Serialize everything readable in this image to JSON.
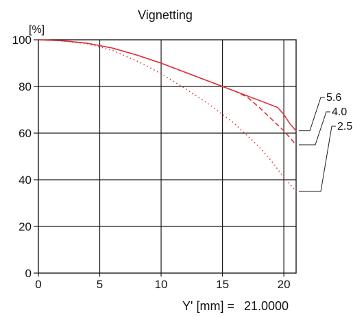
{
  "chart_data": {
    "type": "line",
    "title": "Vignetting",
    "ylabel": "[%]",
    "xlabel": "Y' [mm] =",
    "xlabel_value": "21.0000",
    "xlim": [
      0,
      21
    ],
    "ylim": [
      0,
      100
    ],
    "x_ticks": [
      0,
      5,
      10,
      15,
      20
    ],
    "y_ticks": [
      0,
      20,
      40,
      60,
      80,
      100
    ],
    "grid": true,
    "line_color": "#e0303a",
    "series": [
      {
        "name": "5.6",
        "style": "solid",
        "x": [
          0,
          2,
          4,
          6,
          8,
          10,
          12,
          14,
          15,
          16,
          17,
          18,
          19,
          19.5,
          20,
          20.5,
          21
        ],
        "y": [
          100,
          99.6,
          98.5,
          96.5,
          93.5,
          90,
          86,
          82,
          80,
          78,
          76,
          74,
          72,
          71,
          68,
          64,
          61
        ]
      },
      {
        "name": "4.0",
        "style": "dashed",
        "x": [
          0,
          2,
          4,
          6,
          8,
          10,
          12,
          14,
          15,
          16,
          17,
          18,
          19,
          20,
          21
        ],
        "y": [
          100,
          99.6,
          98.5,
          96.5,
          93.5,
          90,
          86,
          82,
          80,
          78,
          75.5,
          71,
          66,
          61,
          55
        ]
      },
      {
        "name": "2.5",
        "style": "dotted",
        "x": [
          0,
          2,
          4,
          6,
          8,
          10,
          12,
          14,
          15,
          16,
          17,
          18,
          19,
          20,
          21
        ],
        "y": [
          100,
          99.5,
          98.3,
          95.5,
          91,
          85.5,
          79,
          72,
          68,
          64,
          59,
          54,
          48,
          41,
          35
        ]
      }
    ],
    "legend_order": [
      "5.6",
      "4.0",
      "2.5"
    ]
  }
}
